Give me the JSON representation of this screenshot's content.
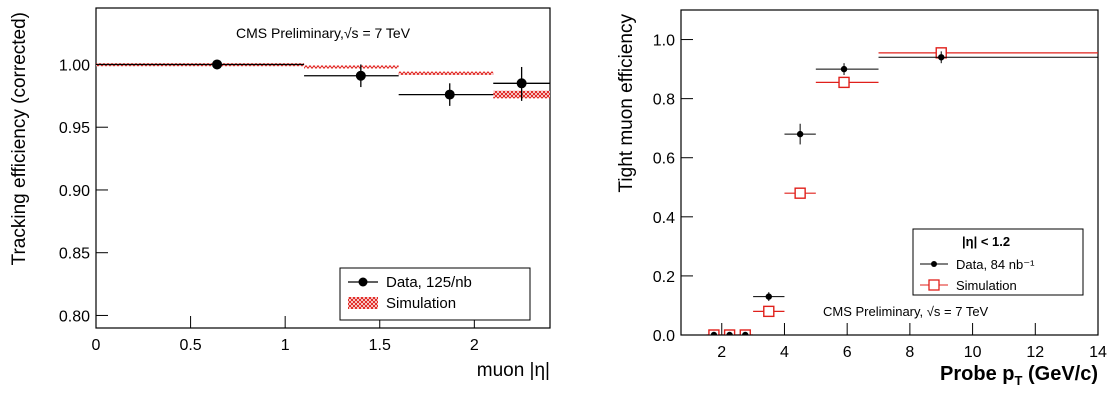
{
  "chart_data": [
    {
      "type": "scatter",
      "title": "",
      "annotation": "CMS Preliminary,√s = 7 TeV",
      "xlabel": "muon |η|",
      "ylabel": "Tracking efficiency (corrected)",
      "xlim": [
        0,
        2.4
      ],
      "ylim": [
        0.79,
        1.045
      ],
      "x_ticks": [
        0,
        0.5,
        1,
        1.5,
        2
      ],
      "x_tick_labels": [
        "0",
        "0.5",
        "1",
        "1.5",
        "2"
      ],
      "y_ticks": [
        0.8,
        0.85,
        0.9,
        0.95,
        1.0
      ],
      "y_tick_labels": [
        "0.80",
        "0.85",
        "0.90",
        "0.95",
        "1.00"
      ],
      "grid": false,
      "legend_position": "bottom-right",
      "series": [
        {
          "name": "Data, 125/nb",
          "style": "black-circle-errorbars",
          "color": "#000000",
          "points": [
            {
              "x": 0.64,
              "y": 1.0,
              "xlo": 0.0,
              "xhi": 1.1,
              "ylo": 0.999,
              "yhi": 1.001
            },
            {
              "x": 1.4,
              "y": 0.991,
              "xlo": 1.1,
              "xhi": 1.6,
              "ylo": 0.982,
              "yhi": 1.0
            },
            {
              "x": 1.87,
              "y": 0.976,
              "xlo": 1.6,
              "xhi": 2.1,
              "ylo": 0.967,
              "yhi": 0.985
            },
            {
              "x": 2.25,
              "y": 0.985,
              "xlo": 2.1,
              "xhi": 2.4,
              "ylo": 0.971,
              "yhi": 0.998
            }
          ]
        },
        {
          "name": "Simulation",
          "style": "red-hatched-band",
          "color": "#e0201b",
          "bins": [
            {
              "xlo": 0.0,
              "xhi": 1.1,
              "y": 1.0,
              "err": 0.001
            },
            {
              "xlo": 1.1,
              "xhi": 1.6,
              "y": 0.998,
              "err": 0.0012
            },
            {
              "xlo": 1.6,
              "xhi": 2.1,
              "y": 0.993,
              "err": 0.0013
            },
            {
              "xlo": 2.1,
              "xhi": 2.4,
              "y": 0.976,
              "err": 0.003
            }
          ]
        }
      ]
    },
    {
      "type": "scatter",
      "title": "",
      "annotation": "CMS Preliminary, √s = 7 TeV",
      "legend_header": "|η| < 1.2",
      "xlabel": "Probe p_T (GeV/c)",
      "ylabel": "Tight muon efficiency",
      "xlim": [
        0.7,
        14
      ],
      "ylim": [
        0,
        1.1
      ],
      "x_ticks": [
        2,
        4,
        6,
        8,
        10,
        12,
        14
      ],
      "x_tick_labels": [
        "2",
        "4",
        "6",
        "8",
        "10",
        "12",
        "14"
      ],
      "y_ticks": [
        0,
        0.2,
        0.4,
        0.6,
        0.8,
        1.0
      ],
      "y_tick_labels": [
        "0.0",
        "0.2",
        "0.4",
        "0.6",
        "0.8",
        "1.0"
      ],
      "grid": false,
      "legend_position": "bottom-right",
      "series": [
        {
          "name": "Data, 84 nb⁻¹",
          "style": "black-dot-errorbars",
          "color": "#000000",
          "points": [
            {
              "x": 1.75,
              "y": 0.0,
              "xlo": 1.5,
              "xhi": 2.0,
              "ylo": 0.0,
              "yhi": 0.005
            },
            {
              "x": 2.25,
              "y": 0.0,
              "xlo": 2.0,
              "xhi": 2.5,
              "ylo": 0.0,
              "yhi": 0.005
            },
            {
              "x": 2.75,
              "y": 0.0,
              "xlo": 2.5,
              "xhi": 3.0,
              "ylo": 0.0,
              "yhi": 0.005
            },
            {
              "x": 3.5,
              "y": 0.13,
              "xlo": 3.0,
              "xhi": 4.0,
              "ylo": 0.115,
              "yhi": 0.145
            },
            {
              "x": 4.5,
              "y": 0.68,
              "xlo": 4.0,
              "xhi": 5.0,
              "ylo": 0.645,
              "yhi": 0.715
            },
            {
              "x": 5.9,
              "y": 0.9,
              "xlo": 5.0,
              "xhi": 7.0,
              "ylo": 0.88,
              "yhi": 0.92
            },
            {
              "x": 9.0,
              "y": 0.94,
              "xlo": 7.0,
              "xhi": 14.0,
              "ylo": 0.92,
              "yhi": 0.96
            }
          ]
        },
        {
          "name": "Simulation",
          "style": "red-open-square",
          "color": "#e0201b",
          "points": [
            {
              "x": 1.75,
              "y": 0.0,
              "xlo": 1.5,
              "xhi": 2.0
            },
            {
              "x": 2.25,
              "y": 0.0,
              "xlo": 2.0,
              "xhi": 2.5
            },
            {
              "x": 2.75,
              "y": 0.0,
              "xlo": 2.5,
              "xhi": 3.0
            },
            {
              "x": 3.5,
              "y": 0.08,
              "xlo": 3.0,
              "xhi": 4.0
            },
            {
              "x": 4.5,
              "y": 0.48,
              "xlo": 4.0,
              "xhi": 5.0
            },
            {
              "x": 5.9,
              "y": 0.855,
              "xlo": 5.0,
              "xhi": 7.0
            },
            {
              "x": 9.0,
              "y": 0.955,
              "xlo": 7.0,
              "xhi": 14.0
            }
          ]
        }
      ]
    }
  ]
}
